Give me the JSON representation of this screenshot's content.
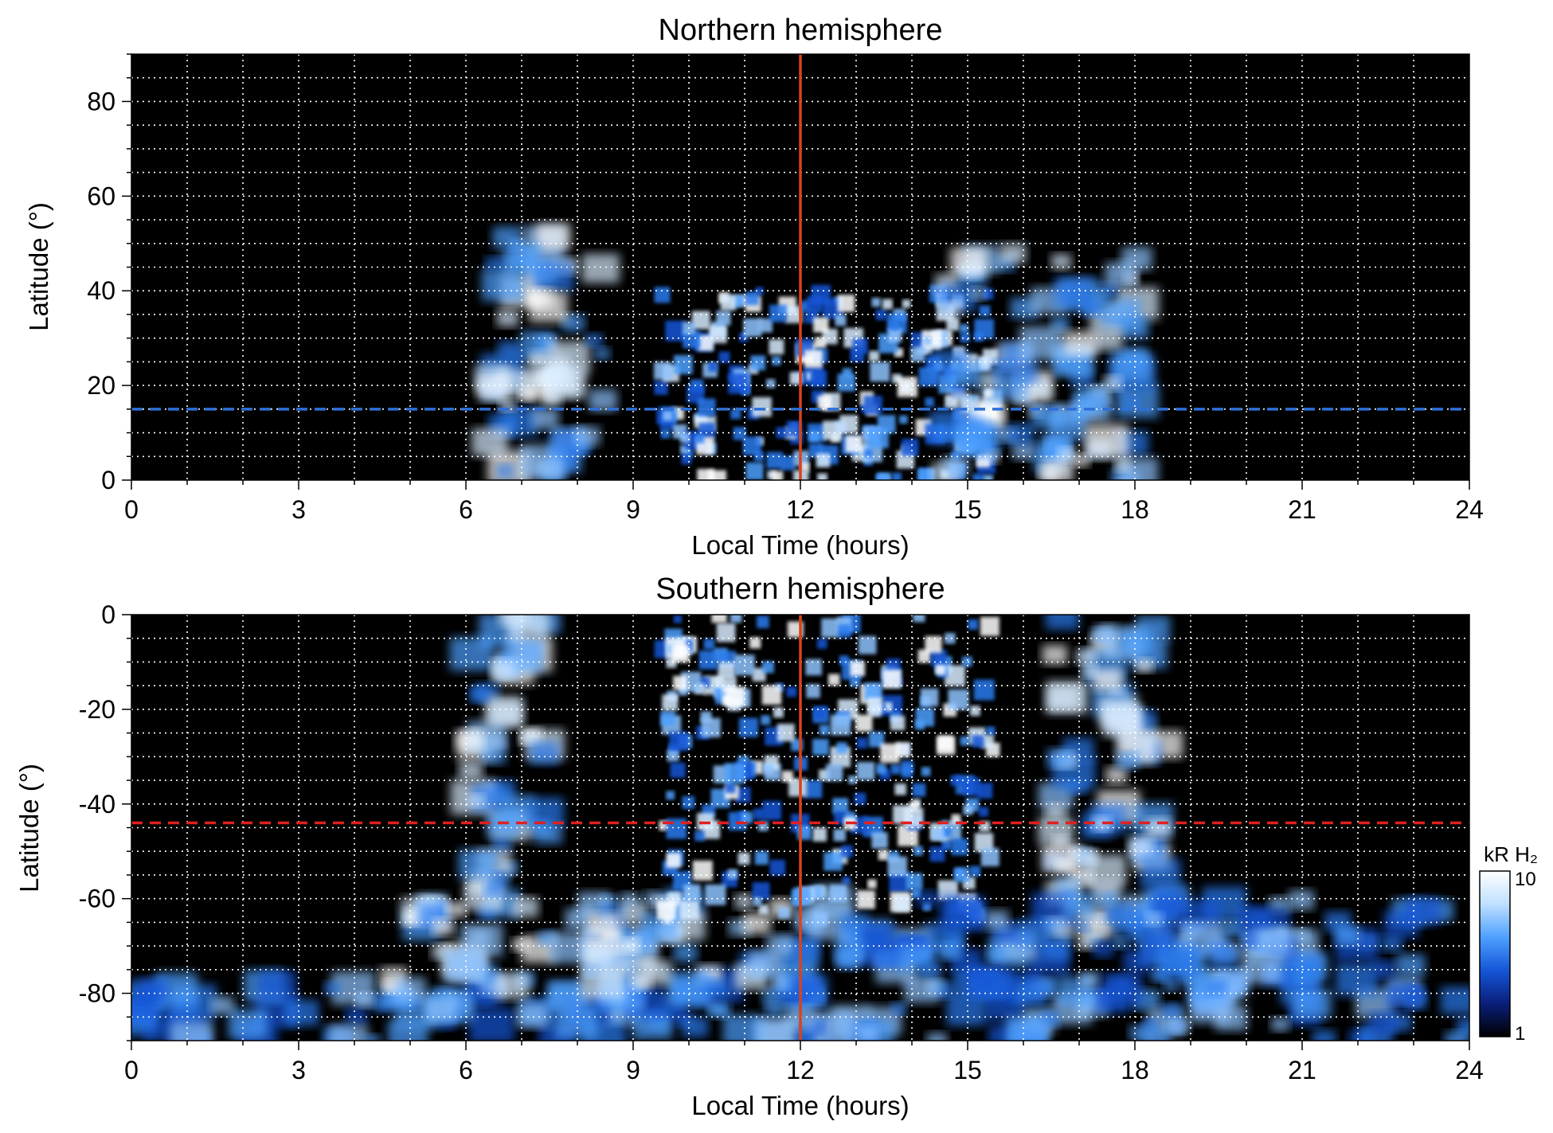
{
  "chart_data": [
    {
      "type": "heatmap",
      "title": "Northern hemisphere",
      "xlabel": "Local Time (hours)",
      "ylabel": "Latitude (°)",
      "xlim": [
        0,
        24
      ],
      "ylim": [
        0,
        90
      ],
      "xticks": [
        "0",
        "3",
        "6",
        "9",
        "12",
        "15",
        "18",
        "21",
        "24"
      ],
      "yticks": [
        "0",
        "20",
        "40",
        "60",
        "80"
      ],
      "grid": true,
      "reference_lines": [
        {
          "orientation": "vertical",
          "x": 12,
          "color": "#d9421c",
          "style": "solid"
        },
        {
          "orientation": "horizontal",
          "y": 15,
          "color": "#2f6fd6",
          "style": "dashed"
        }
      ],
      "emission_regions": [
        {
          "lt_range": [
            6.3,
            8.5
          ],
          "lat_range": [
            0,
            52
          ],
          "intensity": "high"
        },
        {
          "lt_range": [
            9.5,
            15.5
          ],
          "lat_range": [
            0,
            40
          ],
          "intensity": "patchy"
        },
        {
          "lt_range": [
            14.5,
            18.0
          ],
          "lat_range": [
            0,
            50
          ],
          "intensity": "high"
        }
      ]
    },
    {
      "type": "heatmap",
      "title": "Southern hemisphere",
      "xlabel": "Local Time (hours)",
      "ylabel": "Latitude (°)",
      "xlim": [
        0,
        24
      ],
      "ylim": [
        -90,
        0
      ],
      "xticks": [
        "0",
        "3",
        "6",
        "9",
        "12",
        "15",
        "18",
        "21",
        "24"
      ],
      "yticks": [
        "0",
        "-20",
        "-40",
        "-60",
        "-80"
      ],
      "grid": true,
      "reference_lines": [
        {
          "orientation": "vertical",
          "x": 12,
          "color": "#d9421c",
          "style": "solid"
        },
        {
          "orientation": "horizontal",
          "y": -44,
          "color": "#e02020",
          "style": "dashed"
        }
      ],
      "emission_regions": [
        {
          "lt_range": [
            0,
            24
          ],
          "lat_range": [
            -90,
            -78
          ],
          "intensity": "medium"
        },
        {
          "lt_range": [
            4.5,
            12
          ],
          "lat_range": [
            -80,
            -60
          ],
          "intensity": "high"
        },
        {
          "lt_range": [
            6.0,
            7.5
          ],
          "lat_range": [
            -60,
            0
          ],
          "intensity": "high"
        },
        {
          "lt_range": [
            9.5,
            15.5
          ],
          "lat_range": [
            -65,
            0
          ],
          "intensity": "patchy"
        },
        {
          "lt_range": [
            16.5,
            18.5
          ],
          "lat_range": [
            -70,
            0
          ],
          "intensity": "high"
        },
        {
          "lt_range": [
            12,
            23.5
          ],
          "lat_range": [
            -80,
            -60
          ],
          "intensity": "medium"
        }
      ]
    }
  ],
  "colorbar": {
    "label": "kR H₂",
    "min_label": "1",
    "max_label": "10",
    "scale": "log",
    "colors": [
      "#000000",
      "#0a1f7a",
      "#1456d8",
      "#4ea0ff",
      "#bfe0ff",
      "#ffffff"
    ]
  },
  "colors": {
    "background": "#000000",
    "grid": "#ffffff",
    "noon_line": "#d9421c",
    "north_ref_line": "#2f6fd6",
    "south_ref_line": "#e02020"
  }
}
